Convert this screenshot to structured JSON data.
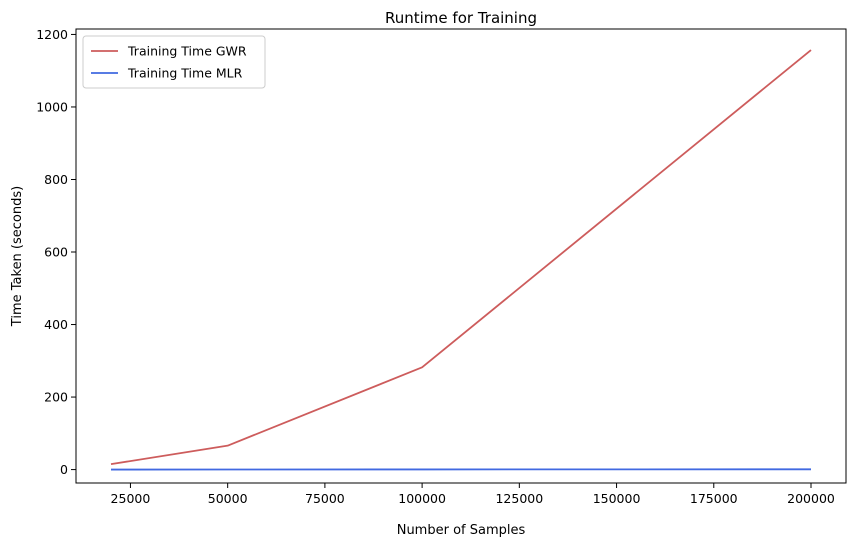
{
  "chart_data": {
    "type": "line",
    "title": "Runtime for Training",
    "xlabel": "Number of Samples",
    "ylabel": "Time Taken (seconds)",
    "x": [
      20000,
      50000,
      100000,
      200000
    ],
    "series": [
      {
        "name": "Training Time GWR",
        "values": [
          15,
          66,
          282,
          1157
        ],
        "color": "#cd5c5c"
      },
      {
        "name": "Training Time MLR",
        "values": [
          0.1,
          0.2,
          0.4,
          0.8
        ],
        "color": "#4169e1"
      }
    ],
    "xlim": [
      11000,
      209000
    ],
    "ylim": [
      -37,
      1215
    ],
    "xticks": [
      25000,
      50000,
      75000,
      100000,
      125000,
      150000,
      175000,
      200000
    ],
    "yticks": [
      0,
      200,
      400,
      600,
      800,
      1000,
      1200
    ],
    "grid": false,
    "legend": "top-left"
  }
}
